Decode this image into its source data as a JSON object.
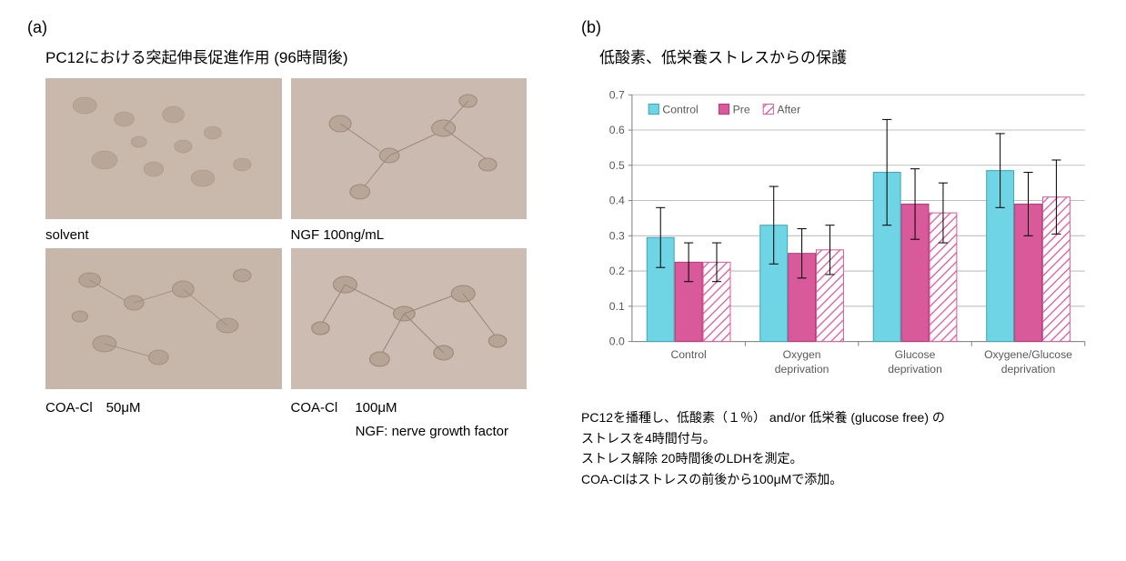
{
  "panelA": {
    "label": "(a)",
    "title": "PC12における突起伸長促進作用 (96時間後)",
    "images": [
      {
        "caption": "solvent"
      },
      {
        "caption": "NGF 100ng/mL"
      },
      {
        "caption": "COA-Cl　50μM"
      },
      {
        "caption": "COA-Cl　 100μM"
      }
    ],
    "footer": "NGF: nerve growth factor"
  },
  "panelB": {
    "label": "(b)",
    "title": "低酸素、低栄養ストレスからの保護",
    "chart": {
      "type": "bar",
      "background_color": "#ffffff",
      "grid_color": "#bfbfbf",
      "axis_color": "#808080",
      "text_color": "#595959",
      "ylim": [
        0.0,
        0.7
      ],
      "ytick_step": 0.1,
      "label_fontsize": 13,
      "tick_fontsize": 12,
      "categories": [
        "Control",
        "Oxygen deprivation",
        "Glucose deprivation",
        "Oxygene/Glucose deprivation"
      ],
      "series": [
        {
          "name": "Control",
          "fill": "#6fd4e4",
          "stroke": "#3aa7ba",
          "pattern": "solid"
        },
        {
          "name": "Pre",
          "fill": "#d85a9a",
          "stroke": "#b53b7b",
          "pattern": "solid"
        },
        {
          "name": "After",
          "fill": "#ffffff",
          "stroke": "#d85a9a",
          "pattern": "hatch"
        }
      ],
      "values": [
        [
          0.295,
          0.225,
          0.225
        ],
        [
          0.33,
          0.25,
          0.26
        ],
        [
          0.48,
          0.39,
          0.365
        ],
        [
          0.485,
          0.39,
          0.41
        ]
      ],
      "errors": [
        [
          0.085,
          0.055,
          0.055
        ],
        [
          0.11,
          0.07,
          0.07
        ],
        [
          0.15,
          0.1,
          0.085
        ],
        [
          0.105,
          0.09,
          0.105
        ]
      ],
      "bar_width": 0.24,
      "group_gap": 0.28,
      "legend_items": [
        "Control",
        "Pre",
        "After"
      ]
    },
    "caption_lines": [
      "PC12を播種し、低酸素（１％） and/or 低栄養 (glucose free) の",
      "ストレスを4時間付与。",
      "ストレス解除 20時間後のLDHを測定。",
      "COA-Clはストレスの前後から100μMで添加。"
    ]
  }
}
